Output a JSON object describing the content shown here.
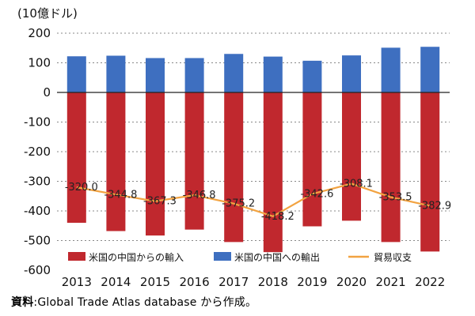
{
  "unit_label": "(10億ドル)",
  "source": {
    "label": "資料",
    "text": ":Global Trade Atlas database から作成。"
  },
  "chart_data": {
    "type": "bar",
    "categories": [
      "2013",
      "2014",
      "2015",
      "2016",
      "2017",
      "2018",
      "2019",
      "2020",
      "2021",
      "2022"
    ],
    "series": [
      {
        "name": "米国の中国からの輸入",
        "type": "bar",
        "color": "#c0282e",
        "values": [
          -440,
          -468,
          -483,
          -463,
          -505,
          -539,
          -452,
          -433,
          -505,
          -537
        ]
      },
      {
        "name": "米国の中国への輸出",
        "type": "bar",
        "color": "#3e6fc0",
        "values": [
          122,
          124,
          116,
          116,
          130,
          121,
          107,
          125,
          151,
          154
        ]
      },
      {
        "name": "貿易収支",
        "type": "line",
        "color": "#f2a341",
        "values": [
          -320.0,
          -344.8,
          -367.3,
          -346.8,
          -375.2,
          -418.2,
          -342.6,
          -308.1,
          -353.5,
          -382.9
        ],
        "labels": [
          "-320.0",
          "-344.8",
          "-367.3",
          "-346.8",
          "-375.2",
          "-418.2",
          "-342.6",
          "-308.1",
          "-353.5",
          "-382.9"
        ]
      }
    ],
    "yticks": [
      "200",
      "100",
      "0",
      "-100",
      "-200",
      "-300",
      "-400",
      "-500",
      "-600"
    ],
    "ylim": [
      -600,
      200
    ],
    "grid": true,
    "legend_position": "bottom-inside"
  }
}
